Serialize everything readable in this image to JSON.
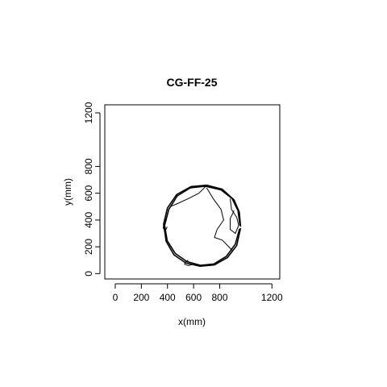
{
  "chart_data": {
    "type": "line",
    "title": "CG-FF-25",
    "xlabel": "x(mm)",
    "ylabel": "y(mm)",
    "xlim": [
      -80,
      1260
    ],
    "ylim": [
      -40,
      1260
    ],
    "x_ticks": [
      0,
      200,
      400,
      600,
      800,
      1200
    ],
    "y_ticks": [
      0,
      200,
      400,
      600,
      800,
      1200
    ],
    "grid": false,
    "legend": "none",
    "line_color": "#000000",
    "series": [
      {
        "values": [
          {
            "x": 960,
            "y": 350
          },
          {
            "x": 950,
            "y": 460
          },
          {
            "x": 910,
            "y": 550
          },
          {
            "x": 820,
            "y": 630
          },
          {
            "x": 700,
            "y": 660
          },
          {
            "x": 580,
            "y": 650
          },
          {
            "x": 470,
            "y": 590
          },
          {
            "x": 400,
            "y": 490
          },
          {
            "x": 370,
            "y": 370
          },
          {
            "x": 390,
            "y": 240
          },
          {
            "x": 450,
            "y": 140
          },
          {
            "x": 540,
            "y": 80
          },
          {
            "x": 650,
            "y": 55
          },
          {
            "x": 760,
            "y": 65
          },
          {
            "x": 860,
            "y": 120
          },
          {
            "x": 930,
            "y": 210
          },
          {
            "x": 960,
            "y": 340
          }
        ]
      },
      {
        "values": [
          {
            "x": 955,
            "y": 360
          },
          {
            "x": 940,
            "y": 470
          },
          {
            "x": 895,
            "y": 560
          },
          {
            "x": 810,
            "y": 625
          },
          {
            "x": 690,
            "y": 652
          },
          {
            "x": 575,
            "y": 640
          },
          {
            "x": 475,
            "y": 580
          },
          {
            "x": 410,
            "y": 480
          },
          {
            "x": 378,
            "y": 360
          },
          {
            "x": 398,
            "y": 245
          },
          {
            "x": 460,
            "y": 150
          },
          {
            "x": 548,
            "y": 90
          },
          {
            "x": 655,
            "y": 62
          },
          {
            "x": 755,
            "y": 72
          },
          {
            "x": 850,
            "y": 128
          },
          {
            "x": 920,
            "y": 220
          },
          {
            "x": 952,
            "y": 335
          }
        ]
      },
      {
        "values": [
          {
            "x": 690,
            "y": 648
          },
          {
            "x": 640,
            "y": 600
          },
          {
            "x": 560,
            "y": 560
          },
          {
            "x": 470,
            "y": 520
          },
          {
            "x": 420,
            "y": 500
          }
        ]
      },
      {
        "values": [
          {
            "x": 700,
            "y": 640
          },
          {
            "x": 750,
            "y": 560
          },
          {
            "x": 810,
            "y": 480
          },
          {
            "x": 830,
            "y": 400
          },
          {
            "x": 780,
            "y": 330
          },
          {
            "x": 760,
            "y": 270
          },
          {
            "x": 820,
            "y": 250
          },
          {
            "x": 870,
            "y": 200
          },
          {
            "x": 900,
            "y": 170
          }
        ]
      },
      {
        "values": [
          {
            "x": 880,
            "y": 560
          },
          {
            "x": 890,
            "y": 480
          },
          {
            "x": 930,
            "y": 420
          },
          {
            "x": 945,
            "y": 360
          },
          {
            "x": 920,
            "y": 300
          },
          {
            "x": 880,
            "y": 330
          },
          {
            "x": 880,
            "y": 410
          },
          {
            "x": 910,
            "y": 470
          }
        ]
      },
      {
        "values": [
          {
            "x": 560,
            "y": 100
          },
          {
            "x": 540,
            "y": 90
          },
          {
            "x": 530,
            "y": 70
          },
          {
            "x": 560,
            "y": 60
          },
          {
            "x": 600,
            "y": 70
          }
        ]
      },
      {
        "values": [
          {
            "x": 385,
            "y": 410
          },
          {
            "x": 372,
            "y": 380
          },
          {
            "x": 368,
            "y": 340
          },
          {
            "x": 384,
            "y": 320
          },
          {
            "x": 398,
            "y": 350
          }
        ]
      }
    ]
  }
}
